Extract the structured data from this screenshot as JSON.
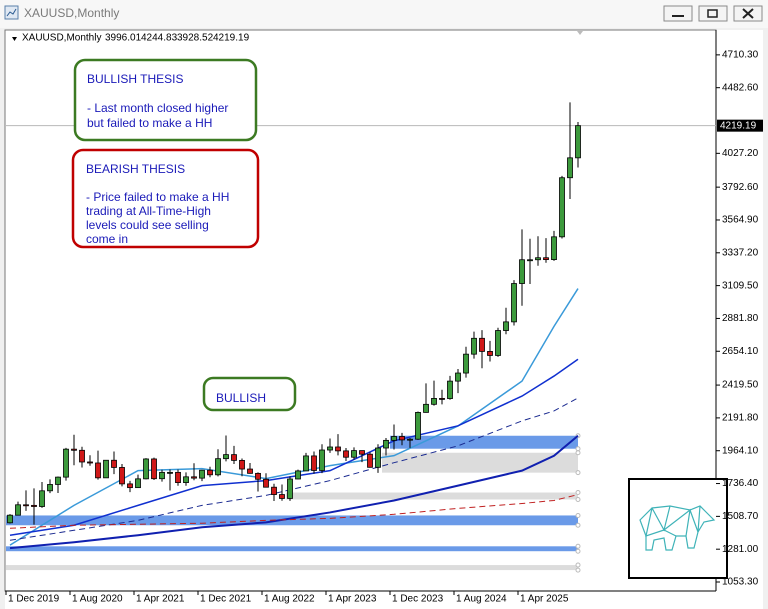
{
  "chart_data": {
    "type": "candlestick",
    "symbol": "XAUUSD,Monthly",
    "categories": [
      "1 Dec 2019",
      null,
      null,
      null,
      null,
      null,
      null,
      null,
      "1 Aug 2020",
      null,
      null,
      null,
      null,
      null,
      null,
      null,
      "1 Apr 2021",
      null,
      null,
      null,
      null,
      null,
      null,
      null,
      "1 Dec 2021",
      null,
      null,
      null,
      null,
      null,
      null,
      null,
      "1 Aug 2022",
      null,
      null,
      null,
      null,
      null,
      null,
      null,
      "1 Apr 2023",
      null,
      null,
      null,
      null,
      null,
      null,
      null,
      "1 Dec 2023",
      null,
      null,
      null,
      null,
      null,
      null,
      null,
      "1 Aug 2024",
      null,
      null,
      null,
      null,
      null,
      null,
      null,
      "1 Apr 2025",
      null,
      null,
      null,
      null,
      null,
      null,
      null
    ],
    "open": [
      1464,
      1517,
      1589,
      1585,
      1577,
      1686,
      1730,
      1781,
      1975,
      1967,
      1886,
      1879,
      1776,
      1898,
      1848,
      1734,
      1708,
      1769,
      1907,
      1770,
      1814,
      1814,
      1743,
      1783,
      1774,
      1829,
      1797,
      1909,
      1937,
      1897,
      1837,
      1807,
      1766,
      1711,
      1660,
      1633,
      1768,
      1824,
      1928,
      1827,
      1969,
      1990,
      1963,
      1919,
      1965,
      1940,
      1849,
      1983,
      2036,
      2063,
      2039,
      2044,
      2230,
      2286,
      2327,
      2326,
      2447,
      2503,
      2634,
      2744,
      2653,
      2625,
      2798,
      2858,
      3124,
      3289,
      3289,
      3303,
      3290,
      3448,
      3858,
      3996.01
    ],
    "high": [
      1524,
      1611,
      1689,
      1703,
      1747,
      1765,
      1785,
      1984,
      2075,
      1992,
      1933,
      1965,
      1900,
      1959,
      1872,
      1755,
      1798,
      1913,
      1916,
      1832,
      1834,
      1834,
      1814,
      1877,
      1831,
      1853,
      1974,
      2070,
      1998,
      1910,
      1879,
      1814,
      1808,
      1735,
      1730,
      1786,
      1833,
      1949,
      1959,
      2009,
      2049,
      2079,
      1983,
      1987,
      1966,
      1953,
      2009,
      2052,
      2146,
      2088,
      2052,
      2236,
      2431,
      2450,
      2387,
      2483,
      2531,
      2685,
      2790,
      2801,
      2726,
      2817,
      2956,
      3148,
      3500,
      3435,
      3452,
      3439,
      3489,
      3871,
      4381,
      4244.83
    ],
    "low": [
      1459,
      1517,
      1547,
      1451,
      1568,
      1670,
      1671,
      1757,
      1863,
      1848,
      1860,
      1764,
      1775,
      1802,
      1717,
      1677,
      1706,
      1765,
      1761,
      1750,
      1688,
      1721,
      1721,
      1759,
      1753,
      1780,
      1786,
      1890,
      1872,
      1787,
      1805,
      1681,
      1709,
      1615,
      1617,
      1616,
      1766,
      1823,
      1805,
      1809,
      1949,
      1932,
      1893,
      1903,
      1885,
      1847,
      1810,
      1931,
      1973,
      2002,
      1984,
      2039,
      2228,
      2277,
      2286,
      2318,
      2364,
      2471,
      2603,
      2536,
      2583,
      2615,
      2772,
      2833,
      2970,
      3121,
      3247,
      3268,
      3281,
      3436,
      3710,
      3928.52
    ],
    "close": [
      1517,
      1589,
      1585,
      1577,
      1686,
      1730,
      1781,
      1975,
      1967,
      1886,
      1879,
      1776,
      1898,
      1848,
      1734,
      1708,
      1769,
      1907,
      1770,
      1814,
      1814,
      1743,
      1783,
      1774,
      1829,
      1797,
      1909,
      1937,
      1897,
      1837,
      1807,
      1766,
      1711,
      1660,
      1633,
      1768,
      1824,
      1928,
      1827,
      1969,
      1990,
      1963,
      1919,
      1965,
      1940,
      1849,
      1983,
      2036,
      2063,
      2039,
      2044,
      2230,
      2286,
      2327,
      2326,
      2447,
      2503,
      2634,
      2744,
      2653,
      2625,
      2798,
      2858,
      3124,
      3289,
      3289,
      3303,
      3290,
      3448,
      3858,
      3996.01,
      4219.19
    ],
    "up_color": "#3c9a3c",
    "down_color": "#d01818",
    "indicators": [
      {
        "color": "#3a9ad9",
        "dash": false,
        "width": 1.5,
        "x": [
          0,
          8,
          16,
          24,
          32,
          40,
          48,
          56,
          64,
          68,
          71
        ],
        "values": [
          1309,
          1585,
          1826,
          1840,
          1771,
          1861,
          1930,
          2136,
          2447,
          2827,
          3089
        ]
      },
      {
        "color": "#1030d0",
        "dash": false,
        "width": 1.5,
        "x": [
          0,
          8,
          16,
          24,
          32,
          40,
          48,
          56,
          64,
          68,
          71
        ],
        "values": [
          1378,
          1447,
          1585,
          1722,
          1757,
          1826,
          2033,
          2137,
          2343,
          2482,
          2599
        ]
      },
      {
        "color": "#1a2a90",
        "dash": true,
        "width": 1,
        "x": [
          0,
          8,
          16,
          24,
          32,
          40,
          48,
          56,
          64,
          68,
          71
        ],
        "values": [
          1343,
          1412,
          1481,
          1585,
          1654,
          1757,
          1881,
          1998,
          2171,
          2240,
          2330
        ]
      },
      {
        "color": "#1020b0",
        "dash": false,
        "width": 2,
        "x": [
          0,
          8,
          16,
          24,
          32,
          40,
          48,
          56,
          64,
          68,
          71
        ],
        "values": [
          1288,
          1329,
          1378,
          1433,
          1467,
          1536,
          1619,
          1722,
          1826,
          1929,
          2068
        ]
      },
      {
        "color": "#c02020",
        "dash": true,
        "width": 1,
        "x": [
          0,
          8,
          16,
          24,
          32,
          40,
          48,
          56,
          64,
          68,
          71
        ],
        "values": [
          1426,
          1447,
          1454,
          1461,
          1481,
          1495,
          1523,
          1564,
          1598,
          1619,
          1660
        ]
      }
    ],
    "zones": [
      {
        "from": 48,
        "low": 1978,
        "high": 2068,
        "color": "#6a9ae8"
      },
      {
        "from": 47,
        "low": 1812,
        "high": 1950,
        "color": "#dcdcdc"
      },
      {
        "from": 35,
        "low": 1626,
        "high": 1674,
        "color": "#dcdcdc"
      },
      {
        "from": 0,
        "low": 1447,
        "high": 1515,
        "color": "#6a9ae8"
      },
      {
        "from": 0,
        "low": 1267,
        "high": 1301,
        "color": "#6a9ae8"
      },
      {
        "from": 0,
        "low": 1136,
        "high": 1171,
        "color": "#dcdcdc"
      }
    ],
    "ylim": [
      984,
      4862
    ],
    "yticks": [
      {
        "value": 4710.3,
        "label": "4710.30"
      },
      {
        "value": 4482.6,
        "label": "4482.60"
      },
      {
        "value": 4027.2,
        "label": "4027.20"
      },
      {
        "value": 3792.6,
        "label": "3792.60"
      },
      {
        "value": 3564.9,
        "label": "3564.90"
      },
      {
        "value": 3337.2,
        "label": "3337.20"
      },
      {
        "value": 3109.5,
        "label": "3109.50"
      },
      {
        "value": 2881.8,
        "label": "2881.80"
      },
      {
        "value": 2654.1,
        "label": "2654.10"
      },
      {
        "value": 2419.5,
        "label": "2419.50"
      },
      {
        "value": 2191.8,
        "label": "2191.80"
      },
      {
        "value": 1964.1,
        "label": "1964.10"
      },
      {
        "value": 1736.4,
        "label": "1736.40"
      },
      {
        "value": 1508.7,
        "label": "1508.70"
      },
      {
        "value": 1281,
        "label": "1281.00"
      },
      {
        "value": 1053.3,
        "label": "1053.30"
      }
    ],
    "annotations": [
      {
        "title": "BULLISH THESIS",
        "lines": [
          "- Last month closed higher",
          "but failed to make a HH"
        ]
      },
      {
        "title": "BEARISH THESIS",
        "lines": [
          "- Price failed to make a HH",
          "trading at All-Time-High",
          "levels could see selling",
          "come in"
        ]
      },
      {
        "title": "BULLISH",
        "lines": []
      }
    ]
  }
}
